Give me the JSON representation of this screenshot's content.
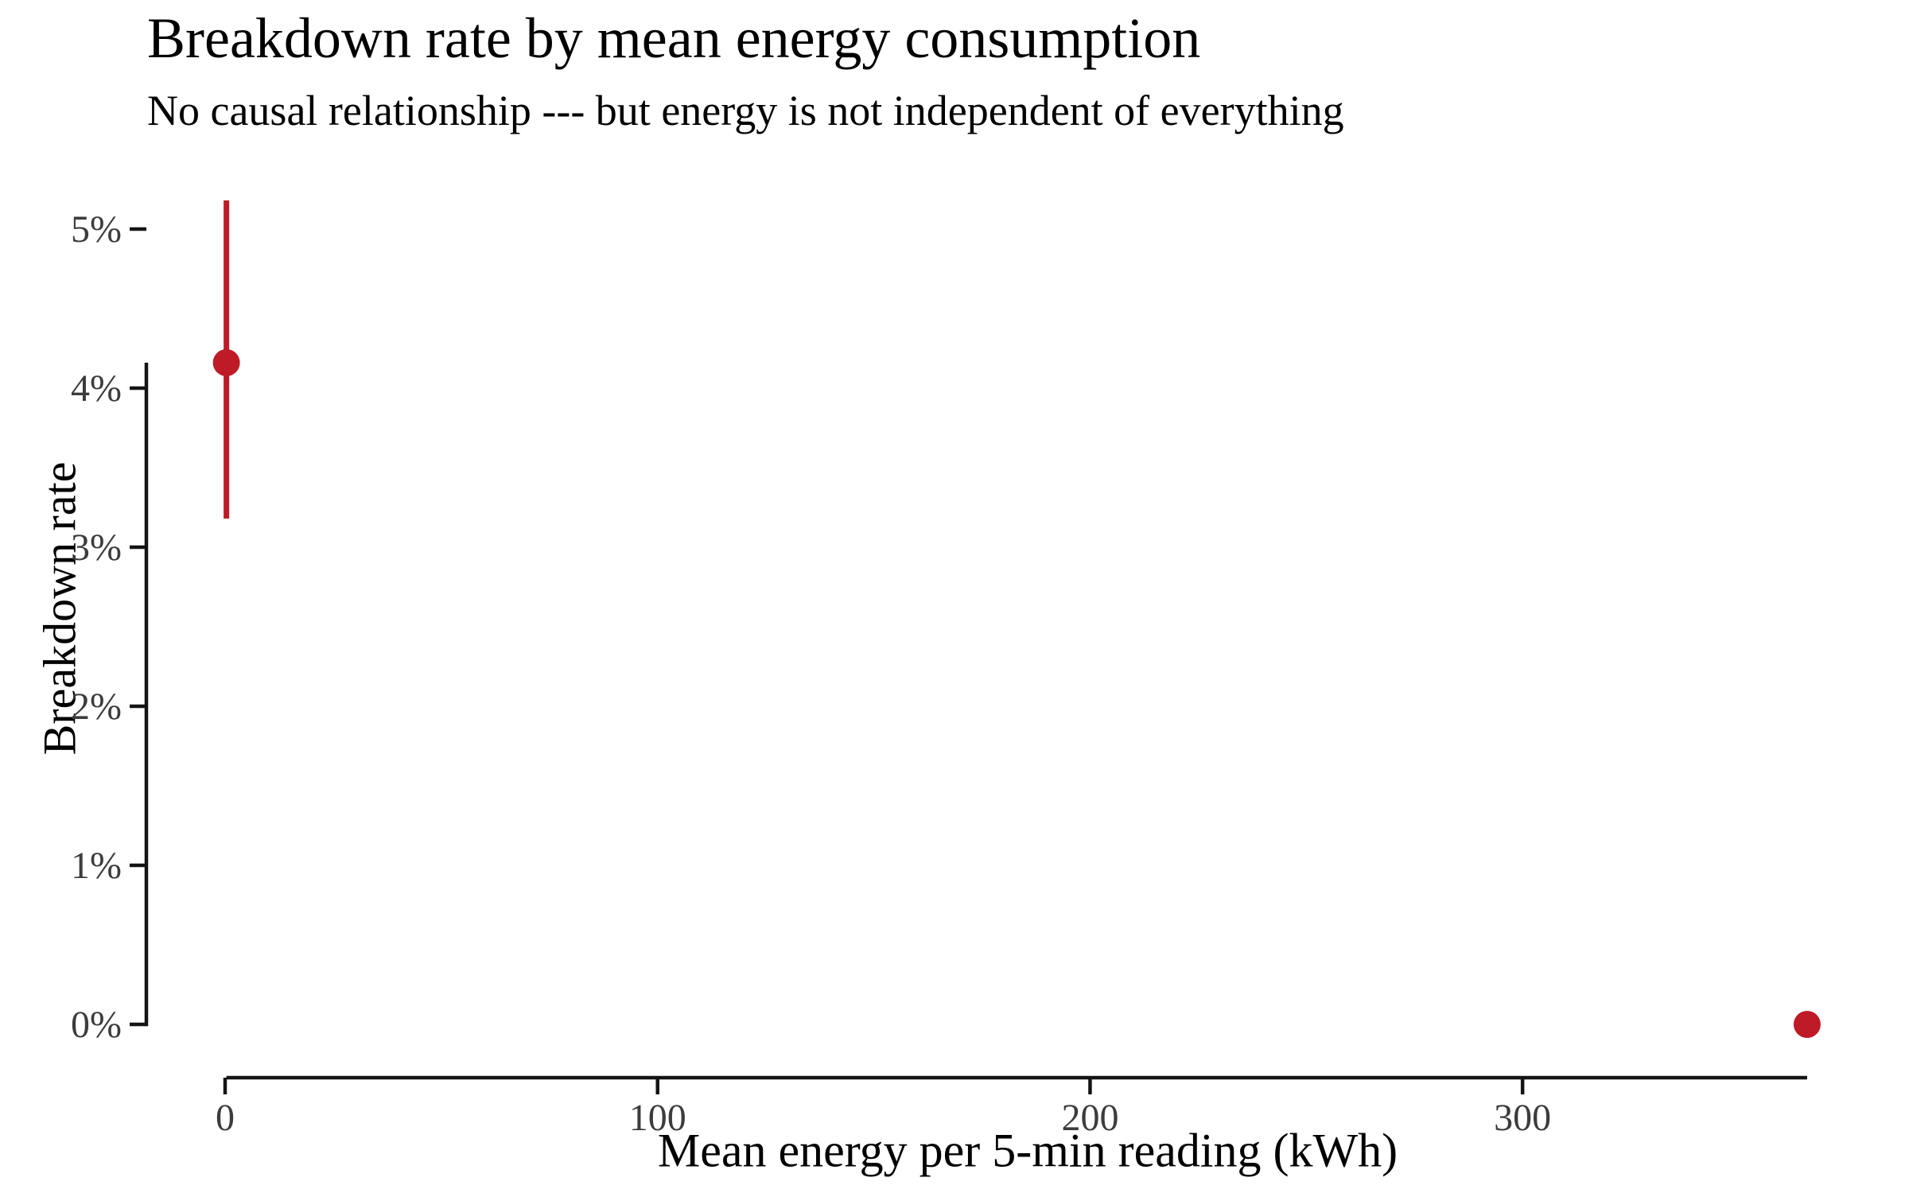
{
  "chart_data": {
    "type": "scatter",
    "title": "Breakdown rate by mean energy consumption",
    "subtitle": "No causal relationship --- but energy is not independent of everything",
    "xlabel": "Mean energy per 5-min reading (kWh)",
    "ylabel": "Breakdown rate",
    "x_ticks": [
      0,
      100,
      200,
      300
    ],
    "x_tick_labels": [
      "0",
      "100",
      "200",
      "300"
    ],
    "y_ticks": [
      0,
      1,
      2,
      3,
      4,
      5
    ],
    "y_tick_labels": [
      "0%",
      "1%",
      "2%",
      "3%",
      "4%",
      "5%"
    ],
    "xlim": [
      0,
      366
    ],
    "ylim": [
      0,
      5.2
    ],
    "grid": "off",
    "legend": "none",
    "axis_style": "axis lines truncated to data range",
    "y_units": "percent",
    "series": [
      {
        "name": "breakdown-rate",
        "color": "#BE1A27",
        "points": [
          {
            "x": 0.3,
            "y": 4.16,
            "ci_low": 3.18,
            "ci_high": 5.18
          },
          {
            "x": 365.8,
            "y": 0.0
          }
        ]
      }
    ]
  },
  "colors": {
    "background": "#FFFFFF",
    "point": "#BE1A27",
    "axis_line": "#141414",
    "tick_label": "#3C3C3C",
    "text": "#000000"
  }
}
